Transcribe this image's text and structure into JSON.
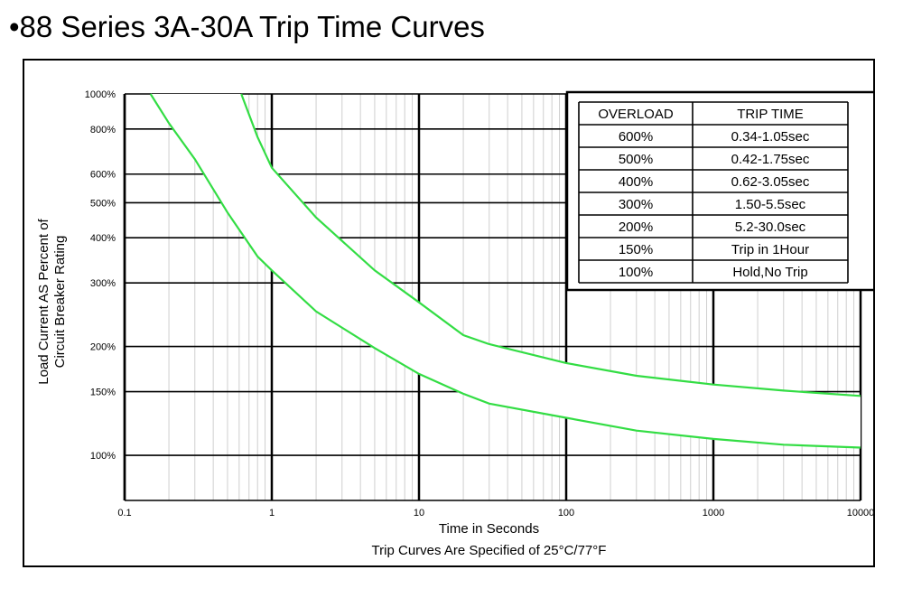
{
  "title": "•88 Series 3A-30A Trip Time Curves",
  "chart_data": {
    "type": "line",
    "x_scale": "log",
    "y_scale": "log",
    "xlim": [
      0.1,
      10000
    ],
    "ylim": [
      75,
      1000
    ],
    "xlabel": "Time in Seconds",
    "caption": "Trip Curves Are Specified of 25°C/77°F",
    "ylabel_lines": [
      "Load Current AS Percent of",
      "Circuit Breaker Rating"
    ],
    "x_ticks": [
      {
        "value": 0.1,
        "label": "0.1"
      },
      {
        "value": 1,
        "label": "1"
      },
      {
        "value": 10,
        "label": "10"
      },
      {
        "value": 100,
        "label": "100"
      },
      {
        "value": 1000,
        "label": "1000"
      },
      {
        "value": 10000,
        "label": "10000"
      }
    ],
    "y_ticks": [
      {
        "value": 100,
        "label": "100%"
      },
      {
        "value": 150,
        "label": "150%"
      },
      {
        "value": 200,
        "label": "200%"
      },
      {
        "value": 300,
        "label": "300%"
      },
      {
        "value": 400,
        "label": "400%"
      },
      {
        "value": 500,
        "label": "500%"
      },
      {
        "value": 600,
        "label": "600%"
      },
      {
        "value": 800,
        "label": "800%"
      },
      {
        "value": 1000,
        "label": "1000%"
      }
    ],
    "grid": true,
    "series": [
      {
        "color": "#33dd44",
        "points": [
          [
            0.15,
            1000
          ],
          [
            0.2,
            830
          ],
          [
            0.3,
            660
          ],
          [
            0.5,
            470
          ],
          [
            0.8,
            355
          ],
          [
            1,
            325
          ],
          [
            2,
            250
          ],
          [
            5,
            198
          ],
          [
            10,
            168
          ],
          [
            20,
            148
          ],
          [
            30,
            139
          ],
          [
            100,
            127
          ],
          [
            300,
            117
          ],
          [
            1000,
            111
          ],
          [
            3000,
            107
          ],
          [
            10000,
            105
          ]
        ]
      },
      {
        "color": "#33dd44",
        "points": [
          [
            0.62,
            1000
          ],
          [
            0.8,
            760
          ],
          [
            1,
            625
          ],
          [
            2,
            455
          ],
          [
            5,
            325
          ],
          [
            10,
            265
          ],
          [
            20,
            215
          ],
          [
            30,
            203
          ],
          [
            100,
            180
          ],
          [
            300,
            166
          ],
          [
            1000,
            157
          ],
          [
            3000,
            151
          ],
          [
            10000,
            146
          ]
        ]
      }
    ],
    "legend_table": {
      "placement": "top-right",
      "headers": [
        "OVERLOAD",
        "TRIP TIME"
      ],
      "rows": [
        [
          "600%",
          "0.34-1.05sec"
        ],
        [
          "500%",
          "0.42-1.75sec"
        ],
        [
          "400%",
          "0.62-3.05sec"
        ],
        [
          "300%",
          "1.50-5.5sec"
        ],
        [
          "200%",
          "5.2-30.0sec"
        ],
        [
          "150%",
          "Trip in 1Hour"
        ],
        [
          "100%",
          "Hold,No Trip"
        ]
      ]
    }
  }
}
